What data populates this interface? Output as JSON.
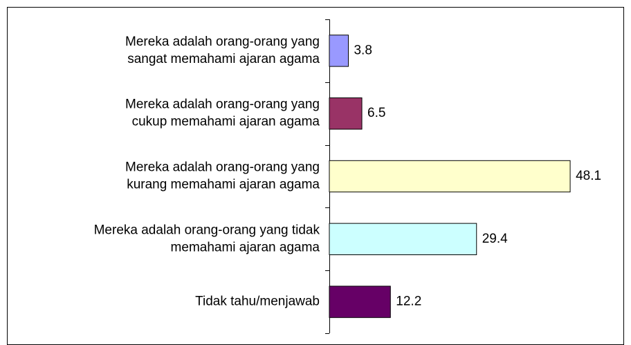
{
  "chart_data": {
    "type": "barh",
    "categories": [
      [
        "Mereka adalah orang-orang yang",
        "sangat memahami ajaran agama"
      ],
      [
        "Mereka adalah orang-orang yang",
        "cukup memahami ajaran agama"
      ],
      [
        "Mereka adalah orang-orang yang",
        "kurang memahami ajaran agama"
      ],
      [
        "Mereka adalah orang-orang yang tidak",
        "memahami ajaran agama"
      ],
      [
        "Tidak tahu/menjawab"
      ]
    ],
    "values": [
      3.8,
      6.5,
      48.1,
      29.4,
      12.2
    ],
    "colors": [
      "#9999ff",
      "#993366",
      "#ffffcc",
      "#ccffff",
      "#660066"
    ],
    "xlim": [
      0,
      55
    ]
  }
}
